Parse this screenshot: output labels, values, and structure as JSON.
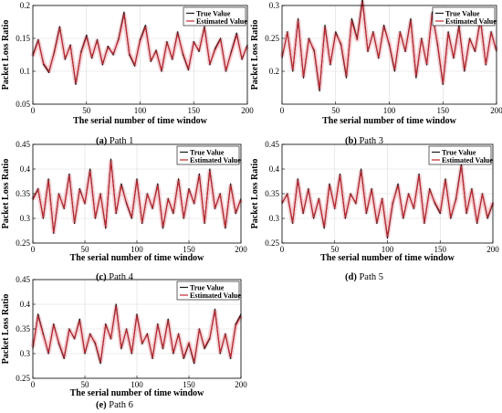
{
  "figure": {
    "colors": {
      "true_line": "#1a1a1a",
      "estimated_line": "#c0272d",
      "estimated_halo": "#f4c2c8",
      "grid": "#d9d9d9"
    }
  },
  "chart_data": [
    {
      "id": "a",
      "type": "line",
      "caption_prefix": "(a)",
      "caption_text": " Path 1",
      "xlabel": "The serial number of time window",
      "ylabel": "Packet Loss Ratio",
      "xlim": [
        0,
        200
      ],
      "ylim": [
        0.05,
        0.2
      ],
      "xticks": [
        "0",
        "50",
        "100",
        "150",
        "200"
      ],
      "yticks": [
        "0.05",
        "0.1",
        "0.15",
        "0.2"
      ],
      "legend": [
        "True Value",
        "Estimated Value"
      ],
      "legend_position": "top-right",
      "grid": true,
      "x_step": 5,
      "series": [
        {
          "name": "True Value",
          "values": [
            0.125,
            0.148,
            0.11,
            0.098,
            0.13,
            0.168,
            0.118,
            0.14,
            0.08,
            0.13,
            0.155,
            0.12,
            0.148,
            0.11,
            0.138,
            0.125,
            0.15,
            0.19,
            0.125,
            0.108,
            0.148,
            0.17,
            0.115,
            0.132,
            0.1,
            0.145,
            0.118,
            0.16,
            0.125,
            0.102,
            0.145,
            0.13,
            0.168,
            0.11,
            0.135,
            0.15,
            0.1,
            0.13,
            0.158,
            0.118,
            0.14
          ]
        },
        {
          "name": "Estimated Value",
          "values": [
            0.123,
            0.146,
            0.112,
            0.1,
            0.128,
            0.165,
            0.12,
            0.138,
            0.083,
            0.128,
            0.152,
            0.122,
            0.146,
            0.112,
            0.136,
            0.127,
            0.148,
            0.186,
            0.127,
            0.11,
            0.146,
            0.167,
            0.117,
            0.13,
            0.102,
            0.143,
            0.12,
            0.157,
            0.127,
            0.104,
            0.143,
            0.132,
            0.165,
            0.112,
            0.133,
            0.148,
            0.102,
            0.128,
            0.155,
            0.12,
            0.138
          ]
        }
      ]
    },
    {
      "id": "b",
      "type": "line",
      "caption_prefix": "(b)",
      "caption_text": " Path 3",
      "xlabel": "The serial number of time window",
      "ylabel": "Packet Loss Ratio",
      "xlim": [
        0,
        200
      ],
      "ylim": [
        0.15,
        0.3
      ],
      "xticks": [
        "0",
        "50",
        "100",
        "150",
        "200"
      ],
      "yticks": [
        "0.2",
        "0.25",
        "0.3"
      ],
      "legend": [
        "True Value",
        "Estimated Value"
      ],
      "legend_position": "top-right",
      "grid": true,
      "x_step": 5,
      "series": [
        {
          "name": "True Value",
          "values": [
            0.22,
            0.26,
            0.2,
            0.28,
            0.19,
            0.25,
            0.23,
            0.17,
            0.27,
            0.21,
            0.26,
            0.24,
            0.19,
            0.28,
            0.25,
            0.31,
            0.23,
            0.26,
            0.22,
            0.27,
            0.24,
            0.2,
            0.26,
            0.23,
            0.28,
            0.19,
            0.25,
            0.21,
            0.29,
            0.24,
            0.18,
            0.26,
            0.22,
            0.27,
            0.2,
            0.25,
            0.23,
            0.28,
            0.21,
            0.26,
            0.23
          ]
        },
        {
          "name": "Estimated Value",
          "values": [
            0.222,
            0.258,
            0.203,
            0.276,
            0.193,
            0.248,
            0.232,
            0.174,
            0.266,
            0.212,
            0.257,
            0.242,
            0.194,
            0.276,
            0.248,
            0.305,
            0.232,
            0.258,
            0.222,
            0.267,
            0.242,
            0.203,
            0.258,
            0.232,
            0.276,
            0.194,
            0.248,
            0.212,
            0.286,
            0.242,
            0.183,
            0.257,
            0.222,
            0.266,
            0.203,
            0.248,
            0.232,
            0.276,
            0.212,
            0.258,
            0.232
          ]
        }
      ]
    },
    {
      "id": "c",
      "type": "line",
      "caption_prefix": "(c)",
      "caption_text": " Path 4",
      "xlabel": "The serial number of time window",
      "ylabel": "Packet Loss Ratio",
      "xlim": [
        0,
        200
      ],
      "ylim": [
        0.25,
        0.45
      ],
      "xticks": [
        "0",
        "50",
        "100",
        "150",
        "200"
      ],
      "yticks": [
        "0.25",
        "0.3",
        "0.35",
        "0.4",
        "0.45"
      ],
      "legend": [
        "True Value",
        "Estimated Value"
      ],
      "legend_position": "top-right",
      "grid": true,
      "x_step": 5,
      "series": [
        {
          "name": "True Value",
          "values": [
            0.34,
            0.36,
            0.3,
            0.38,
            0.27,
            0.35,
            0.32,
            0.39,
            0.29,
            0.36,
            0.33,
            0.4,
            0.3,
            0.35,
            0.28,
            0.42,
            0.31,
            0.37,
            0.33,
            0.3,
            0.38,
            0.29,
            0.35,
            0.32,
            0.37,
            0.28,
            0.34,
            0.31,
            0.38,
            0.3,
            0.36,
            0.33,
            0.39,
            0.29,
            0.4,
            0.32,
            0.35,
            0.28,
            0.37,
            0.31,
            0.34
          ]
        },
        {
          "name": "Estimated Value",
          "values": [
            0.338,
            0.358,
            0.303,
            0.376,
            0.273,
            0.348,
            0.322,
            0.386,
            0.293,
            0.357,
            0.332,
            0.395,
            0.303,
            0.348,
            0.284,
            0.415,
            0.313,
            0.366,
            0.332,
            0.303,
            0.376,
            0.293,
            0.348,
            0.322,
            0.366,
            0.284,
            0.338,
            0.313,
            0.376,
            0.303,
            0.357,
            0.332,
            0.386,
            0.293,
            0.395,
            0.322,
            0.348,
            0.284,
            0.366,
            0.313,
            0.338
          ]
        }
      ]
    },
    {
      "id": "d",
      "type": "line",
      "caption_prefix": "(d)",
      "caption_text": " Path 5",
      "xlabel": "The serial number of time window",
      "ylabel": "Packet Loss Ratio",
      "xlim": [
        0,
        200
      ],
      "ylim": [
        0.25,
        0.45
      ],
      "xticks": [
        "0",
        "50",
        "100",
        "150",
        "200"
      ],
      "yticks": [
        "0.25",
        "0.3",
        "0.35",
        "0.4",
        "0.45"
      ],
      "legend": [
        "True Value",
        "Estimated Value"
      ],
      "legend_position": "top-right",
      "grid": true,
      "x_step": 5,
      "series": [
        {
          "name": "True Value",
          "values": [
            0.33,
            0.35,
            0.29,
            0.38,
            0.31,
            0.36,
            0.3,
            0.34,
            0.28,
            0.37,
            0.32,
            0.39,
            0.3,
            0.35,
            0.33,
            0.4,
            0.31,
            0.36,
            0.29,
            0.34,
            0.26,
            0.33,
            0.37,
            0.3,
            0.35,
            0.32,
            0.39,
            0.29,
            0.36,
            0.33,
            0.31,
            0.38,
            0.3,
            0.34,
            0.41,
            0.31,
            0.36,
            0.29,
            0.35,
            0.3,
            0.33
          ]
        },
        {
          "name": "Estimated Value",
          "values": [
            0.332,
            0.348,
            0.293,
            0.376,
            0.313,
            0.357,
            0.303,
            0.338,
            0.284,
            0.366,
            0.322,
            0.386,
            0.303,
            0.348,
            0.332,
            0.395,
            0.313,
            0.357,
            0.293,
            0.338,
            0.264,
            0.332,
            0.366,
            0.303,
            0.348,
            0.322,
            0.386,
            0.293,
            0.357,
            0.332,
            0.313,
            0.376,
            0.303,
            0.338,
            0.405,
            0.313,
            0.357,
            0.293,
            0.348,
            0.303,
            0.332
          ]
        }
      ]
    },
    {
      "id": "e",
      "type": "line",
      "caption_prefix": "(e)",
      "caption_text": " Path 6",
      "xlabel": "The serial number of time window",
      "ylabel": "Packet Loss Ratio",
      "xlim": [
        0,
        200
      ],
      "ylim": [
        0.25,
        0.45
      ],
      "xticks": [
        "0",
        "50",
        "100",
        "150",
        "200"
      ],
      "yticks": [
        "0.25",
        "0.3",
        "0.35",
        "0.4",
        "0.45"
      ],
      "legend": [
        "True Value",
        "Estimated Value"
      ],
      "legend_position": "top-right",
      "grid": true,
      "x_step": 5,
      "series": [
        {
          "name": "True Value",
          "values": [
            0.31,
            0.38,
            0.34,
            0.3,
            0.36,
            0.32,
            0.29,
            0.35,
            0.33,
            0.37,
            0.3,
            0.34,
            0.32,
            0.28,
            0.36,
            0.33,
            0.4,
            0.31,
            0.35,
            0.3,
            0.38,
            0.32,
            0.34,
            0.29,
            0.36,
            0.31,
            0.37,
            0.3,
            0.34,
            0.29,
            0.32,
            0.28,
            0.35,
            0.31,
            0.33,
            0.39,
            0.3,
            0.34,
            0.29,
            0.36,
            0.38
          ]
        },
        {
          "name": "Estimated Value",
          "values": [
            0.313,
            0.376,
            0.338,
            0.303,
            0.357,
            0.322,
            0.293,
            0.348,
            0.332,
            0.366,
            0.303,
            0.338,
            0.322,
            0.284,
            0.357,
            0.332,
            0.395,
            0.313,
            0.348,
            0.303,
            0.376,
            0.322,
            0.338,
            0.293,
            0.357,
            0.313,
            0.366,
            0.303,
            0.338,
            0.293,
            0.322,
            0.284,
            0.348,
            0.313,
            0.332,
            0.386,
            0.303,
            0.338,
            0.293,
            0.357,
            0.376
          ]
        }
      ]
    }
  ]
}
